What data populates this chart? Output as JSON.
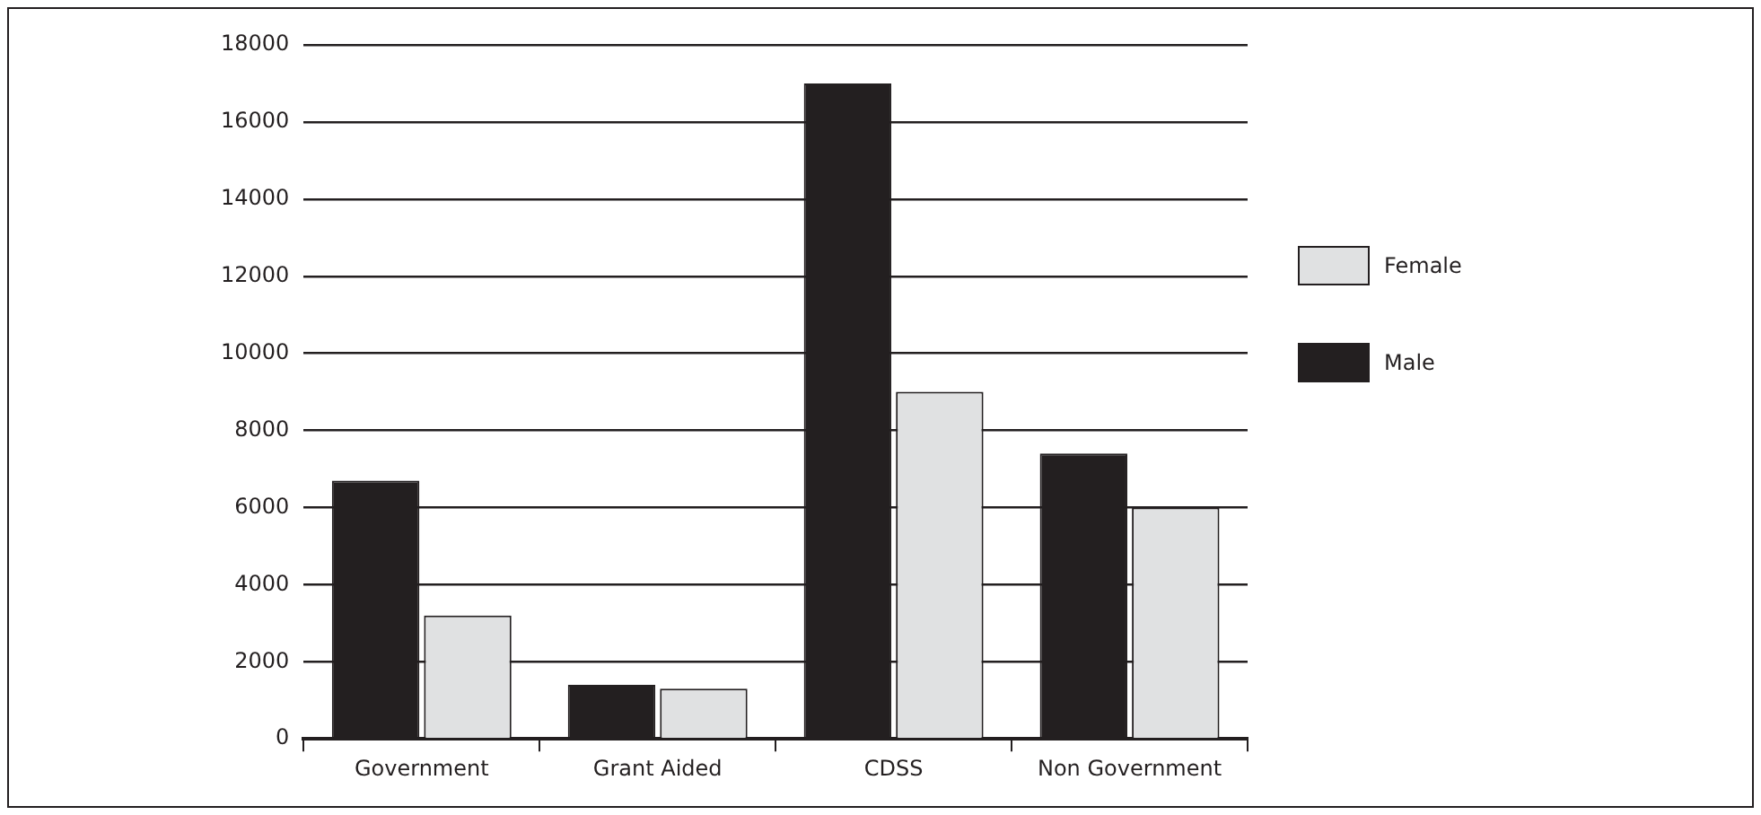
{
  "chart_data": {
    "type": "bar",
    "categories": [
      "Government",
      "Grant Aided",
      "CDSS",
      "Non Government"
    ],
    "series": [
      {
        "name": "Male",
        "color": "#231f20",
        "values": [
          6700,
          1400,
          17000,
          7400
        ]
      },
      {
        "name": "Female",
        "color": "#e0e1e2",
        "values": [
          3200,
          1300,
          9000,
          6000
        ]
      }
    ],
    "ylim": [
      0,
      18000
    ],
    "yticks": [
      0,
      2000,
      4000,
      6000,
      8000,
      10000,
      12000,
      14000,
      16000,
      18000
    ],
    "grid": "y",
    "legend": "right"
  }
}
